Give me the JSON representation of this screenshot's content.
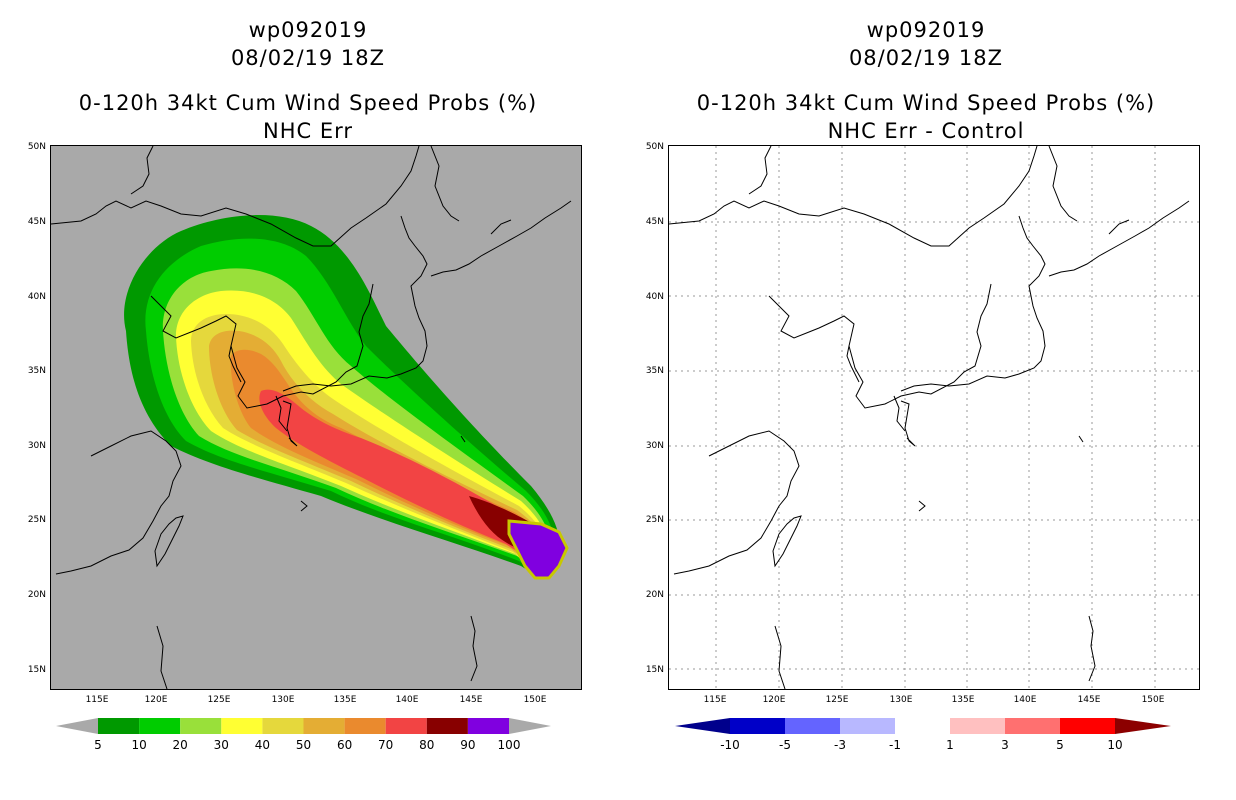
{
  "left": {
    "title1": "wp092019",
    "title2": "08/02/19 18Z",
    "title3": "0-120h 34kt Cum Wind Speed Probs (%)",
    "title4": "NHC Err",
    "colorbar": {
      "ticks": [
        "5",
        "10",
        "20",
        "30",
        "40",
        "50",
        "60",
        "70",
        "80",
        "90",
        "100"
      ],
      "colors": [
        "#009900",
        "#00cc00",
        "#99e03a",
        "#ffff33",
        "#e5d83c",
        "#e4ad34",
        "#ea8a2e",
        "#f24444",
        "#880000",
        "#8000e0"
      ]
    }
  },
  "right": {
    "title1": "wp092019",
    "title2": "08/02/19 18Z",
    "title3": "0-120h 34kt Cum Wind Speed Probs (%)",
    "title4": "NHC Err - Control",
    "colorbar": {
      "ticks": [
        "-10",
        "-5",
        "-3",
        "-1",
        "1",
        "3",
        "5",
        "10"
      ],
      "colors": [
        "#0000c8",
        "#6464ff",
        "#b8b8ff",
        "#ffffff",
        "#ffc0c0",
        "#ff7070",
        "#ff0000"
      ],
      "end_colors": [
        "#00008c",
        "#8c0000"
      ]
    }
  },
  "axes": {
    "lat_labels": [
      "50N",
      "45N",
      "40N",
      "35N",
      "30N",
      "25N",
      "20N",
      "15N"
    ],
    "lon_labels": [
      "115E",
      "120E",
      "125E",
      "130E",
      "135E",
      "140E",
      "145E",
      "150E"
    ]
  },
  "colors": {
    "left_background": "#a9a9a9",
    "grid": "#999999"
  }
}
